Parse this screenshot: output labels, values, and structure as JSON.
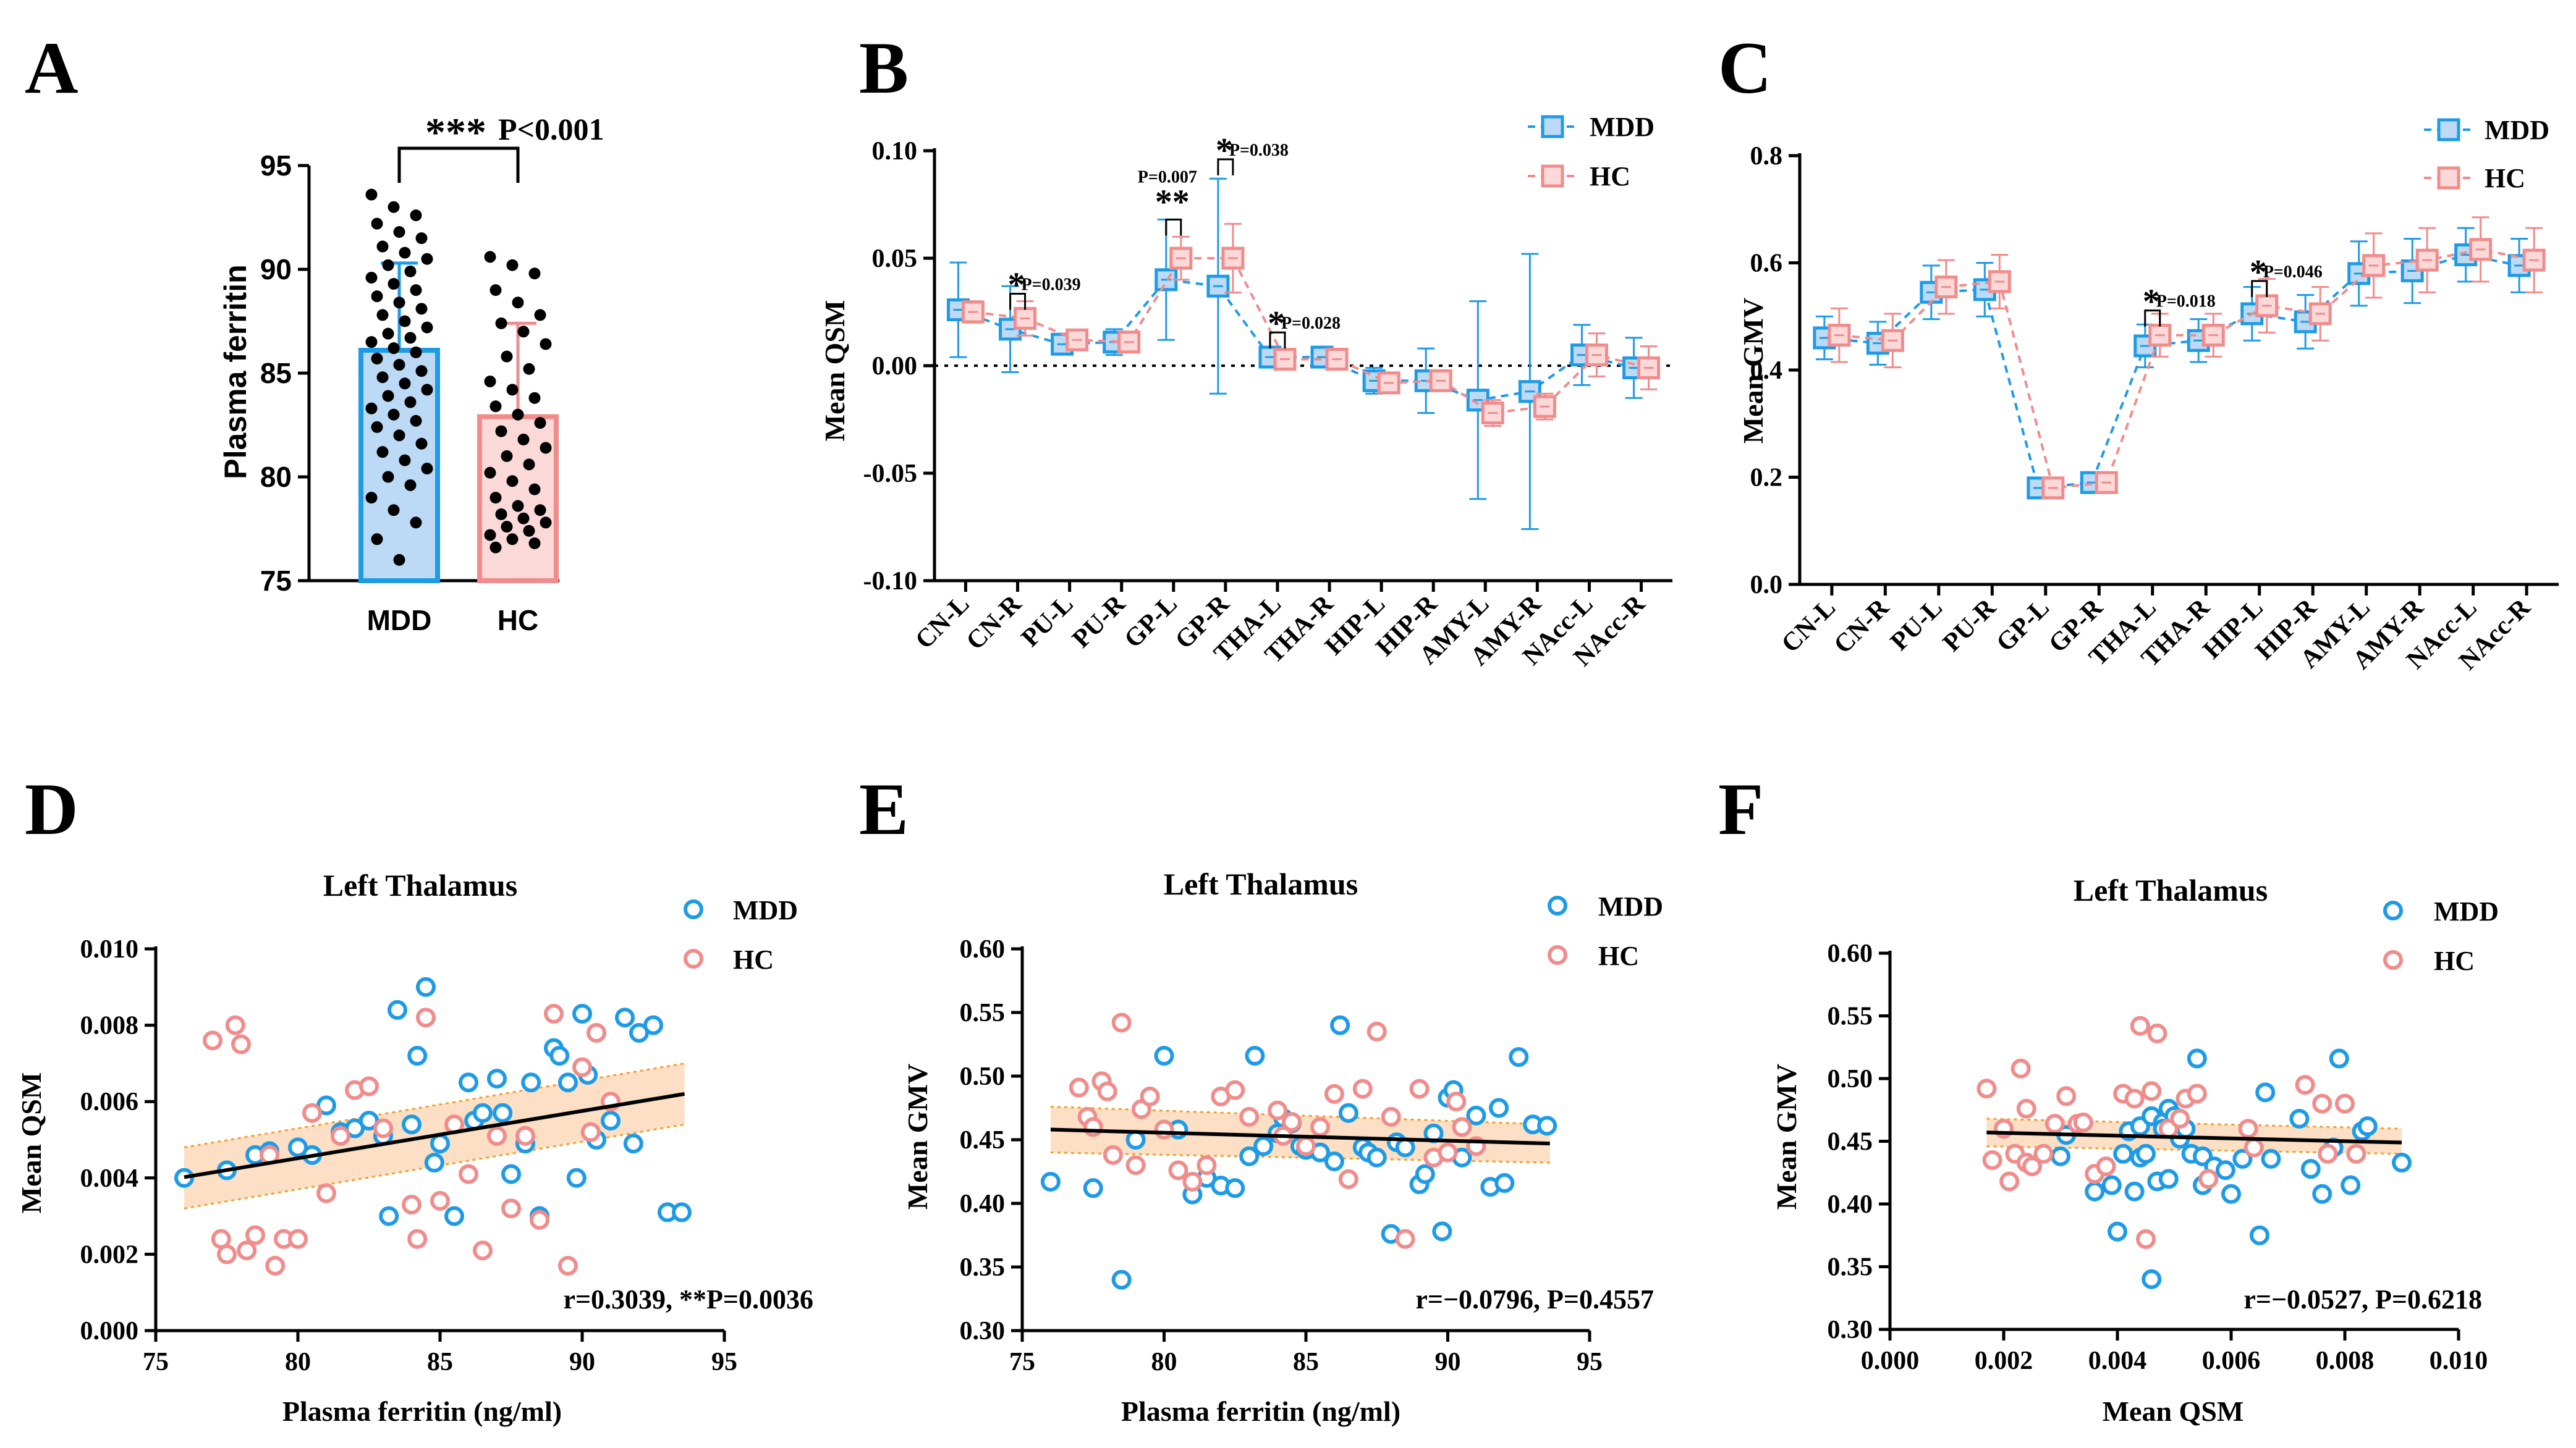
{
  "colors": {
    "mdd": "#1e9be6",
    "hc": "#f08c8c",
    "mdd_fill": "#bcdaf5",
    "hc_fill": "#fcd9d9",
    "band": "#fbd7b5",
    "band_edge": "#f0a030",
    "line": "#000000"
  },
  "panel_labels": [
    "A",
    "B",
    "C",
    "D",
    "E",
    "F"
  ],
  "chart_data": [
    {
      "id": "A",
      "type": "bar",
      "categories": [
        "MDD",
        "HC"
      ],
      "values": [
        86.1,
        82.9
      ],
      "sd": [
        4.2,
        4.5
      ],
      "ylabel": "Plasma ferritin",
      "ylim": [
        75,
        95
      ],
      "yticks": [
        75,
        80,
        85,
        90,
        95
      ],
      "significance": {
        "stars": "***",
        "text": "P<0.001"
      },
      "points": {
        "MDD": [
          93.6,
          93.0,
          92.6,
          92.2,
          91.8,
          91.5,
          91.1,
          90.8,
          90.5,
          90.2,
          89.9,
          89.6,
          89.3,
          89.0,
          88.7,
          88.4,
          88.1,
          87.8,
          87.5,
          87.2,
          86.9,
          86.7,
          86.5,
          86.2,
          86.0,
          85.7,
          85.4,
          85.1,
          84.8,
          84.5,
          84.2,
          83.9,
          83.6,
          83.3,
          83.0,
          82.7,
          82.4,
          82.0,
          81.6,
          81.2,
          80.8,
          80.4,
          80.0,
          79.6,
          79.0,
          78.4,
          77.8,
          77.0,
          76.0
        ],
        "HC": [
          90.6,
          90.2,
          89.8,
          89.0,
          88.4,
          87.8,
          87.4,
          87.0,
          86.4,
          85.8,
          85.2,
          84.6,
          84.2,
          83.8,
          83.4,
          83.0,
          82.6,
          82.2,
          81.8,
          81.4,
          81.0,
          80.6,
          80.2,
          79.8,
          79.4,
          79.0,
          78.6,
          78.4,
          78.2,
          78.0,
          77.8,
          77.6,
          77.4,
          77.2,
          77.0,
          76.8,
          76.6
        ]
      }
    },
    {
      "id": "B",
      "type": "line",
      "categories": [
        "CN-L",
        "CN-R",
        "PU-L",
        "PU-R",
        "GP-L",
        "GP-R",
        "THA-L",
        "THA-R",
        "HIP-L",
        "HIP-R",
        "AMY-L",
        "AMY-R",
        "NAcc-L",
        "NAcc-R"
      ],
      "series": [
        {
          "name": "MDD",
          "values": [
            0.026,
            0.017,
            0.01,
            0.011,
            0.04,
            0.037,
            0.004,
            0.004,
            -0.007,
            -0.007,
            -0.016,
            -0.012,
            0.005,
            -0.001
          ],
          "err": [
            0.022,
            0.02,
            0.004,
            0.006,
            0.028,
            0.05,
            0.002,
            0.002,
            0.006,
            0.015,
            0.046,
            0.064,
            0.014,
            0.014
          ]
        },
        {
          "name": "HC",
          "values": [
            0.025,
            0.022,
            0.012,
            0.011,
            0.05,
            0.05,
            0.003,
            0.003,
            -0.008,
            -0.007,
            -0.022,
            -0.019,
            0.005,
            -0.001
          ],
          "err": [
            0.005,
            0.008,
            0.004,
            0.004,
            0.01,
            0.016,
            0.002,
            0.003,
            0.004,
            0.004,
            0.006,
            0.006,
            0.01,
            0.01
          ]
        }
      ],
      "ylabel": "Mean QSM",
      "ylim": [
        -0.1,
        0.1
      ],
      "yticks": [
        "-0.10",
        "-0.05",
        "0.00",
        "0.05",
        "0.10"
      ],
      "annotations": [
        {
          "index": 1,
          "stars": "*",
          "text": "P=0.039"
        },
        {
          "index": 4,
          "stars": "**",
          "text": "P=0.007"
        },
        {
          "index": 5,
          "stars": "*",
          "text": "P=0.038"
        },
        {
          "index": 6,
          "stars": "*",
          "text": "P=0.028"
        }
      ],
      "legend": [
        "MDD",
        "HC"
      ]
    },
    {
      "id": "C",
      "type": "line",
      "categories": [
        "CN-L",
        "CN-R",
        "PU-L",
        "PU-R",
        "GP-L",
        "GP-R",
        "THA-L",
        "THA-R",
        "HIP-L",
        "HIP-R",
        "AMY-L",
        "AMY-R",
        "NAcc-L",
        "NAcc-R"
      ],
      "series": [
        {
          "name": "MDD",
          "values": [
            0.46,
            0.45,
            0.545,
            0.55,
            0.18,
            0.19,
            0.445,
            0.455,
            0.505,
            0.49,
            0.58,
            0.585,
            0.615,
            0.595
          ],
          "err": [
            0.04,
            0.04,
            0.05,
            0.05,
            0.01,
            0.01,
            0.04,
            0.04,
            0.05,
            0.05,
            0.06,
            0.06,
            0.05,
            0.05
          ]
        },
        {
          "name": "HC",
          "values": [
            0.465,
            0.455,
            0.555,
            0.565,
            0.18,
            0.19,
            0.465,
            0.465,
            0.52,
            0.505,
            0.595,
            0.605,
            0.625,
            0.605
          ],
          "err": [
            0.05,
            0.05,
            0.05,
            0.05,
            0.01,
            0.01,
            0.04,
            0.04,
            0.05,
            0.05,
            0.06,
            0.06,
            0.06,
            0.06
          ]
        }
      ],
      "ylabel": "Mean GMV",
      "ylim": [
        0.0,
        0.8
      ],
      "yticks": [
        "0.0",
        "0.2",
        "0.4",
        "0.6",
        "0.8"
      ],
      "annotations": [
        {
          "index": 6,
          "stars": "*",
          "text": "P=0.018"
        },
        {
          "index": 8,
          "stars": "*",
          "text": "P=0.046"
        }
      ],
      "legend": [
        "MDD",
        "HC"
      ]
    },
    {
      "id": "D",
      "type": "scatter",
      "title": "Left Thalamus",
      "xlabel": "Plasma ferritin (ng/ml)",
      "ylabel": "Mean QSM",
      "xlim": [
        75,
        95
      ],
      "ylim": [
        0,
        0.01
      ],
      "xticks": [
        "75",
        "80",
        "85",
        "90",
        "95"
      ],
      "yticks": [
        "0.000",
        "0.002",
        "0.004",
        "0.006",
        "0.008",
        "0.010"
      ],
      "legend": [
        "MDD",
        "HC"
      ],
      "stat_text": "r=0.3039, **P=0.0036",
      "fit": {
        "x": [
          76,
          93.6
        ],
        "y": [
          0.00402,
          0.0062
        ],
        "band_lo": [
          0.0032,
          0.0054
        ],
        "band_hi": [
          0.0048,
          0.007
        ]
      },
      "series": [
        {
          "name": "MDD",
          "x": [
            76.0,
            77.5,
            78.5,
            79.0,
            80.0,
            80.5,
            81.0,
            81.5,
            82.0,
            82.5,
            83.0,
            83.2,
            83.5,
            84.0,
            84.2,
            84.5,
            84.8,
            85.0,
            85.5,
            86.0,
            86.2,
            86.5,
            87.0,
            87.2,
            87.5,
            88.0,
            88.2,
            88.5,
            89.0,
            89.2,
            89.5,
            89.8,
            90.0,
            90.2,
            90.5,
            91.0,
            91.5,
            91.8,
            92.0,
            92.5,
            93.0,
            93.5
          ],
          "y": [
            0.004,
            0.0042,
            0.0046,
            0.0047,
            0.0048,
            0.0046,
            0.0059,
            0.0052,
            0.0053,
            0.0055,
            0.0051,
            0.003,
            0.0084,
            0.0054,
            0.0072,
            0.009,
            0.0044,
            0.0049,
            0.003,
            0.0065,
            0.0055,
            0.0057,
            0.0066,
            0.0057,
            0.0041,
            0.0049,
            0.0065,
            0.003,
            0.0074,
            0.0072,
            0.0065,
            0.004,
            0.0083,
            0.0067,
            0.005,
            0.0055,
            0.0082,
            0.0049,
            0.0078,
            0.008,
            0.0031,
            0.0031
          ]
        },
        {
          "name": "HC",
          "x": [
            77.0,
            77.3,
            77.5,
            77.8,
            78.0,
            78.2,
            78.5,
            79.0,
            79.2,
            79.5,
            80.0,
            80.5,
            81.0,
            81.5,
            82.0,
            82.5,
            83.0,
            84.0,
            84.2,
            84.5,
            85.0,
            85.5,
            86.0,
            86.5,
            87.0,
            87.5,
            88.0,
            88.5,
            89.0,
            89.5,
            90.0,
            90.3,
            90.5,
            91.0
          ],
          "y": [
            0.0076,
            0.0024,
            0.002,
            0.008,
            0.0075,
            0.0021,
            0.0025,
            0.0046,
            0.0017,
            0.0024,
            0.0024,
            0.0057,
            0.0036,
            0.0051,
            0.0063,
            0.0064,
            0.0053,
            0.0033,
            0.0024,
            0.0082,
            0.0034,
            0.0054,
            0.0041,
            0.0021,
            0.0051,
            0.0032,
            0.0051,
            0.0029,
            0.0083,
            0.0017,
            0.0069,
            0.0052,
            0.0078,
            0.006
          ]
        }
      ]
    },
    {
      "id": "E",
      "type": "scatter",
      "title": "Left Thalamus",
      "xlabel": "Plasma ferritin (ng/ml)",
      "ylabel": "Mean GMV",
      "xlim": [
        75,
        95
      ],
      "ylim": [
        0.3,
        0.6
      ],
      "xticks": [
        "75",
        "80",
        "85",
        "90",
        "95"
      ],
      "yticks": [
        "0.30",
        "0.35",
        "0.40",
        "0.45",
        "0.50",
        "0.55",
        "0.60"
      ],
      "legend": [
        "MDD",
        "HC"
      ],
      "stat_text": "r=−0.0796, P=0.4557",
      "fit": {
        "x": [
          76,
          93.6
        ],
        "y": [
          0.458,
          0.447
        ],
        "band_lo": [
          0.44,
          0.432
        ],
        "band_hi": [
          0.476,
          0.462
        ]
      },
      "series": [
        {
          "name": "MDD",
          "x": [
            76.0,
            77.5,
            78.5,
            79.0,
            80.0,
            80.5,
            81.0,
            81.5,
            82.0,
            82.5,
            83.0,
            83.2,
            83.5,
            84.0,
            84.2,
            84.5,
            84.8,
            85.0,
            85.5,
            86.0,
            86.2,
            86.5,
            87.0,
            87.2,
            87.5,
            88.0,
            88.2,
            88.5,
            89.0,
            89.2,
            89.5,
            89.8,
            90.0,
            90.2,
            90.5,
            91.0,
            91.5,
            91.8,
            92.0,
            92.5,
            93.0,
            93.5
          ],
          "y": [
            0.417,
            0.412,
            0.34,
            0.45,
            0.516,
            0.458,
            0.407,
            0.42,
            0.414,
            0.412,
            0.437,
            0.516,
            0.445,
            0.455,
            0.467,
            0.463,
            0.445,
            0.442,
            0.44,
            0.433,
            0.54,
            0.471,
            0.444,
            0.44,
            0.436,
            0.376,
            0.448,
            0.444,
            0.415,
            0.423,
            0.455,
            0.378,
            0.483,
            0.489,
            0.436,
            0.469,
            0.413,
            0.475,
            0.416,
            0.515,
            0.462,
            0.461
          ]
        },
        {
          "name": "HC",
          "x": [
            77.0,
            77.3,
            77.5,
            77.8,
            78.0,
            78.2,
            78.5,
            79.0,
            79.2,
            79.5,
            80.0,
            80.5,
            81.0,
            81.5,
            82.0,
            82.5,
            83.0,
            84.0,
            84.2,
            84.5,
            85.0,
            85.5,
            86.0,
            86.5,
            87.0,
            87.5,
            88.0,
            88.5,
            89.0,
            89.5,
            90.0,
            90.3,
            90.5,
            91.0
          ],
          "y": [
            0.491,
            0.468,
            0.46,
            0.496,
            0.488,
            0.438,
            0.542,
            0.43,
            0.474,
            0.484,
            0.458,
            0.426,
            0.417,
            0.43,
            0.484,
            0.489,
            0.468,
            0.473,
            0.453,
            0.464,
            0.445,
            0.46,
            0.486,
            0.419,
            0.49,
            0.535,
            0.468,
            0.372,
            0.49,
            0.436,
            0.44,
            0.48,
            0.46,
            0.445
          ]
        }
      ]
    },
    {
      "id": "F",
      "type": "scatter",
      "title": "Left Thalamus",
      "xlabel": "Mean QSM",
      "ylabel": "Mean GMV",
      "xlim": [
        0.0,
        0.01
      ],
      "ylim": [
        0.3,
        0.6
      ],
      "xticks": [
        "0.000",
        "0.002",
        "0.004",
        "0.006",
        "0.008",
        "0.010"
      ],
      "yticks": [
        "0.30",
        "0.35",
        "0.40",
        "0.45",
        "0.50",
        "0.55",
        "0.60"
      ],
      "legend": [
        "MDD",
        "HC"
      ],
      "stat_text": "r=−0.0527, P=0.6218",
      "fit": {
        "x": [
          0.0017,
          0.009
        ],
        "y": [
          0.457,
          0.449
        ],
        "band_lo": [
          0.446,
          0.44
        ],
        "band_hi": [
          0.468,
          0.46
        ]
      },
      "series": [
        {
          "name": "MDD",
          "x": [
            0.003,
            0.0031,
            0.0036,
            0.0039,
            0.004,
            0.0041,
            0.0042,
            0.0043,
            0.0044,
            0.0044,
            0.0045,
            0.0046,
            0.0046,
            0.0047,
            0.0048,
            0.0048,
            0.0049,
            0.0049,
            0.005,
            0.0051,
            0.0052,
            0.0053,
            0.0054,
            0.0055,
            0.0055,
            0.0057,
            0.0059,
            0.006,
            0.0062,
            0.0065,
            0.0066,
            0.0067,
            0.0072,
            0.0074,
            0.0076,
            0.0078,
            0.0079,
            0.0081,
            0.0083,
            0.0084,
            0.009
          ],
          "y": [
            0.438,
            0.455,
            0.41,
            0.415,
            0.378,
            0.44,
            0.458,
            0.41,
            0.437,
            0.462,
            0.44,
            0.47,
            0.34,
            0.418,
            0.465,
            0.46,
            0.42,
            0.476,
            0.47,
            0.452,
            0.46,
            0.44,
            0.516,
            0.438,
            0.415,
            0.43,
            0.427,
            0.408,
            0.436,
            0.375,
            0.489,
            0.436,
            0.468,
            0.428,
            0.408,
            0.445,
            0.516,
            0.415,
            0.458,
            0.462,
            0.433
          ]
        },
        {
          "name": "HC",
          "x": [
            0.0017,
            0.0018,
            0.002,
            0.0021,
            0.0022,
            0.0023,
            0.0024,
            0.0024,
            0.0025,
            0.0027,
            0.0029,
            0.0031,
            0.0033,
            0.0034,
            0.0036,
            0.0038,
            0.0041,
            0.0043,
            0.0044,
            0.0045,
            0.0046,
            0.0047,
            0.0049,
            0.0051,
            0.0052,
            0.0054,
            0.0056,
            0.0063,
            0.0064,
            0.0073,
            0.0076,
            0.0077,
            0.008,
            0.0082
          ],
          "y": [
            0.492,
            0.435,
            0.46,
            0.418,
            0.44,
            0.508,
            0.433,
            0.476,
            0.43,
            0.44,
            0.464,
            0.486,
            0.464,
            0.465,
            0.424,
            0.43,
            0.488,
            0.484,
            0.542,
            0.372,
            0.49,
            0.536,
            0.46,
            0.468,
            0.484,
            0.488,
            0.42,
            0.46,
            0.445,
            0.495,
            0.48,
            0.44,
            0.48,
            0.44
          ]
        }
      ]
    }
  ]
}
